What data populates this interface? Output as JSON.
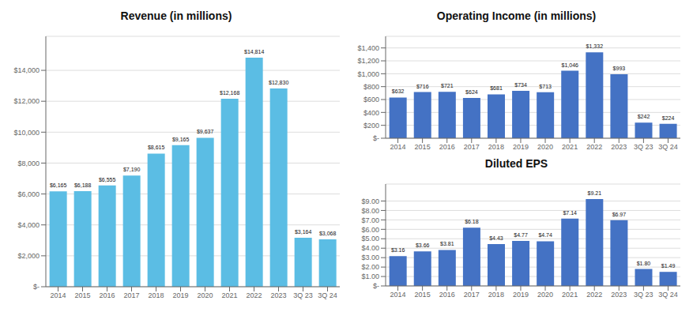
{
  "chart_data": [
    {
      "type": "bar",
      "title": "Revenue (in millions)",
      "categories": [
        "2014",
        "2015",
        "2016",
        "2017",
        "2018",
        "2019",
        "2020",
        "2021",
        "2022",
        "2023",
        "3Q 23",
        "3Q 24"
      ],
      "values": [
        6165,
        6188,
        6555,
        7190,
        8615,
        9165,
        9637,
        12168,
        14814,
        12830,
        3164,
        3068
      ],
      "value_labels": [
        "$6,165",
        "$6,188",
        "$6,555",
        "$7,190",
        "$8,615",
        "$9,165",
        "$9,637",
        "$12,168",
        "$14,814",
        "$12,830",
        "$3,164",
        "$3,068"
      ],
      "color": "#5bbde4",
      "ylim": [
        0,
        16200
      ],
      "yticks": [
        {
          "value": 0,
          "label": "$-"
        },
        {
          "value": 2000,
          "label": "$2,000"
        },
        {
          "value": 4000,
          "label": "$4,000"
        },
        {
          "value": 6000,
          "label": "$6,000"
        },
        {
          "value": 8000,
          "label": "$8,000"
        },
        {
          "value": 10000,
          "label": "$10,000"
        },
        {
          "value": 12000,
          "label": "$12,000"
        },
        {
          "value": 14000,
          "label": "$14,000"
        }
      ],
      "grid": true,
      "data_labels": true
    },
    {
      "type": "bar",
      "title": "Operating Income (in millions)",
      "categories": [
        "2014",
        "2015",
        "2016",
        "2017",
        "2018",
        "2019",
        "2020",
        "2021",
        "2022",
        "2023",
        "3Q 23",
        "3Q 24"
      ],
      "values": [
        632,
        716,
        721,
        624,
        681,
        734,
        713,
        1046,
        1332,
        993,
        242,
        224
      ],
      "value_labels": [
        "$632",
        "$716",
        "$721",
        "$624",
        "$681",
        "$734",
        "$713",
        "$1,046",
        "$1,332",
        "$993",
        "$242",
        "$224"
      ],
      "color": "#4472c4",
      "ylim": [
        0,
        1580
      ],
      "yticks": [
        {
          "value": 0,
          "label": "$-"
        },
        {
          "value": 200,
          "label": "$200"
        },
        {
          "value": 400,
          "label": "$400"
        },
        {
          "value": 600,
          "label": "$600"
        },
        {
          "value": 800,
          "label": "$800"
        },
        {
          "value": 1000,
          "label": "$1,000"
        },
        {
          "value": 1200,
          "label": "$1,200"
        },
        {
          "value": 1400,
          "label": "$1,400"
        }
      ],
      "grid": true,
      "data_labels": true
    },
    {
      "type": "bar",
      "title": "Diluted EPS",
      "categories": [
        "2014",
        "2015",
        "2016",
        "2017",
        "2018",
        "2019",
        "2020",
        "2021",
        "2022",
        "2023",
        "3Q 23",
        "3Q 24"
      ],
      "values": [
        3.16,
        3.66,
        3.81,
        6.18,
        4.43,
        4.77,
        4.74,
        7.14,
        9.21,
        6.97,
        1.8,
        1.49
      ],
      "value_labels": [
        "$3.16",
        "$3.66",
        "$3.81",
        "$6.18",
        "$4.43",
        "$4.77",
        "$4.74",
        "$7.14",
        "$9.21",
        "$6.97",
        "$1.80",
        "$1.49"
      ],
      "color": "#4472c4",
      "ylim": [
        0,
        10.8
      ],
      "yticks": [
        {
          "value": 0,
          "label": "$-"
        },
        {
          "value": 1.0,
          "label": "$1.00"
        },
        {
          "value": 2.0,
          "label": "$2.00"
        },
        {
          "value": 3.0,
          "label": "$3.00"
        },
        {
          "value": 4.0,
          "label": "$4.00"
        },
        {
          "value": 5.0,
          "label": "$5.00"
        },
        {
          "value": 6.0,
          "label": "$6.00"
        },
        {
          "value": 7.0,
          "label": "$7.00"
        },
        {
          "value": 8.0,
          "label": "$8.00"
        },
        {
          "value": 9.0,
          "label": "$9.00"
        }
      ],
      "grid": true,
      "data_labels": true
    }
  ]
}
